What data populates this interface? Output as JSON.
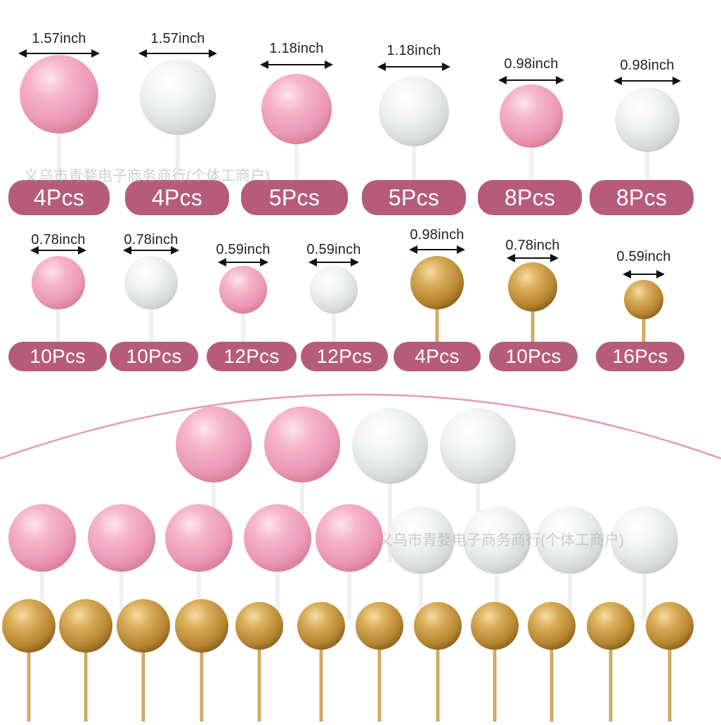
{
  "colors": {
    "pink": "#f1a9c3",
    "white": "#e9ecec",
    "gold": "#c99a44",
    "pill": "#b65c7a",
    "arc": "#e49ab6"
  },
  "catalog": [
    {
      "size": "1.57inch",
      "count": "4Pcs",
      "color": "pink"
    },
    {
      "size": "1.57inch",
      "count": "4Pcs",
      "color": "white"
    },
    {
      "size": "1.18inch",
      "count": "5Pcs",
      "color": "pink"
    },
    {
      "size": "1.18inch",
      "count": "5Pcs",
      "color": "white"
    },
    {
      "size": "0.98inch",
      "count": "8Pcs",
      "color": "pink"
    },
    {
      "size": "0.98inch",
      "count": "8Pcs",
      "color": "white"
    },
    {
      "size": "0.78inch",
      "count": "10Pcs",
      "color": "pink"
    },
    {
      "size": "0.78inch",
      "count": "10Pcs",
      "color": "white"
    },
    {
      "size": "0.59inch",
      "count": "12Pcs",
      "color": "pink"
    },
    {
      "size": "0.59inch",
      "count": "12Pcs",
      "color": "white"
    },
    {
      "size": "0.98inch",
      "count": "4Pcs",
      "color": "gold"
    },
    {
      "size": "0.78inch",
      "count": "10Pcs",
      "color": "gold"
    },
    {
      "size": "0.59inch",
      "count": "16Pcs",
      "color": "gold"
    }
  ],
  "watermarks": [
    "义乌市青婺电子商务商行(个体工商户)",
    "义乌市青婺电子商务商行(个体工商户)"
  ]
}
